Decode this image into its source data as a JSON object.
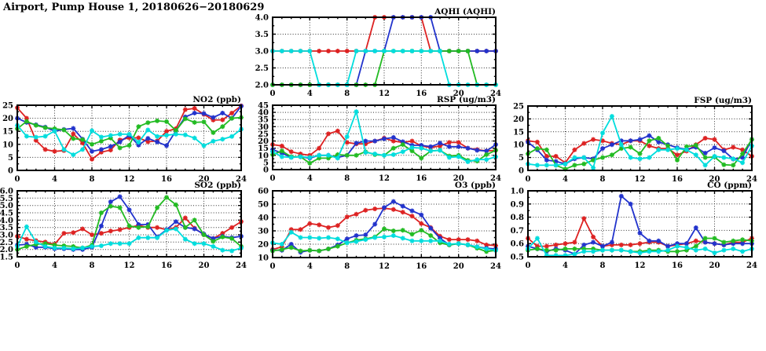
{
  "page_title": "Airport, Pump House 1, 20180626−20180629",
  "colors": {
    "frame": "#000000",
    "grid": "#333333",
    "background": "#ffffff",
    "series_red": "#dd2222",
    "series_blue": "#2233cc",
    "series_green": "#22bb22",
    "series_cyan": "#00dddd"
  },
  "x_axis": {
    "tick_labels": [
      "0",
      "4",
      "8",
      "12",
      "16",
      "20",
      "24"
    ],
    "tick_values": [
      0,
      4,
      8,
      12,
      16,
      20,
      24
    ],
    "minor_step": 1,
    "lim": [
      0,
      24
    ]
  },
  "chart_data": [
    {
      "id": "aqhi",
      "type": "line",
      "title": "AQHI (AQHI)",
      "xlabel": "",
      "ylabel": "",
      "xlim": [
        0,
        24
      ],
      "ylim": [
        2.0,
        4.0
      ],
      "ytick_labels": [
        "2.0",
        "2.5",
        "3.0",
        "3.5",
        "4.0"
      ],
      "series": [
        {
          "name": "red",
          "color": "#dd2222",
          "values": [
            3,
            3,
            3,
            3,
            3,
            3,
            3,
            3,
            3,
            3,
            3,
            4,
            4,
            4,
            4,
            4,
            4,
            3,
            3,
            3,
            3,
            3,
            3,
            3,
            3
          ]
        },
        {
          "name": "blue",
          "color": "#2233cc",
          "values": [
            2,
            2,
            2,
            2,
            2,
            2,
            2,
            2,
            2,
            2,
            3,
            3,
            3,
            4,
            4,
            4,
            4,
            4,
            3,
            3,
            3,
            3,
            3,
            3,
            3
          ]
        },
        {
          "name": "green",
          "color": "#22bb22",
          "values": [
            2,
            2,
            2,
            2,
            2,
            2,
            2,
            2,
            2,
            2,
            2,
            2,
            3,
            3,
            3,
            3,
            3,
            3,
            3,
            3,
            3,
            3,
            2,
            2,
            2
          ]
        },
        {
          "name": "cyan",
          "color": "#00dddd",
          "values": [
            3,
            3,
            3,
            3,
            3,
            2,
            2,
            2,
            2,
            3,
            3,
            3,
            3,
            3,
            3,
            3,
            3,
            3,
            3,
            2,
            2,
            2,
            2,
            2,
            2
          ]
        }
      ]
    },
    {
      "id": "no2",
      "type": "line",
      "title": "NO2 (ppb)",
      "xlabel": "",
      "ylabel": "",
      "xlim": [
        0,
        24
      ],
      "ylim": [
        0,
        25
      ],
      "ytick_labels": [
        "0",
        "5",
        "10",
        "15",
        "20",
        "25"
      ],
      "series": [
        {
          "name": "red",
          "color": "#dd2222",
          "values": [
            24,
            20,
            11.5,
            8,
            7.3,
            7.6,
            14,
            10.5,
            4.3,
            7,
            7.8,
            11.7,
            12.5,
            12.5,
            11,
            11.3,
            15,
            16,
            23.3,
            23.8,
            21.5,
            19.3,
            19.4,
            22,
            24.8
          ]
        },
        {
          "name": "blue",
          "color": "#2233cc",
          "values": [
            20,
            18.4,
            17.5,
            16.6,
            15.1,
            15.7,
            16.1,
            12,
            7.3,
            8,
            9.2,
            10.9,
            13.5,
            9.7,
            12.3,
            10.9,
            9.5,
            15.2,
            20.5,
            22,
            21.8,
            20.3,
            22,
            20,
            24.6
          ]
        },
        {
          "name": "green",
          "color": "#22bb22",
          "values": [
            16,
            18.8,
            17.3,
            16.4,
            16,
            15.5,
            12.2,
            11.8,
            10,
            11.2,
            12.4,
            8.6,
            9.6,
            16.8,
            18.3,
            19,
            18.7,
            15.3,
            19.8,
            18.4,
            18.6,
            14.5,
            16.8,
            20,
            20.3
          ]
        },
        {
          "name": "cyan",
          "color": "#00dddd",
          "values": [
            17.3,
            13.1,
            12.7,
            13.1,
            15.1,
            8,
            6,
            8,
            15.2,
            12.8,
            13.4,
            13.9,
            13.9,
            10.8,
            15.5,
            13,
            13.5,
            13.9,
            13.6,
            12.4,
            9.5,
            11.2,
            12,
            13,
            15.8
          ]
        }
      ]
    },
    {
      "id": "rsp",
      "type": "line",
      "title": "RSP (ug/m3)",
      "xlabel": "",
      "ylabel": "",
      "xlim": [
        0,
        24
      ],
      "ylim": [
        0,
        45
      ],
      "ytick_labels": [
        "0",
        "5",
        "10",
        "15",
        "20",
        "25",
        "30",
        "35",
        "40",
        "45"
      ],
      "series": [
        {
          "name": "red",
          "color": "#dd2222",
          "values": [
            17.5,
            16.5,
            12.5,
            11,
            10,
            15,
            25,
            27,
            19,
            18,
            18,
            20,
            22,
            20,
            19,
            20,
            16.5,
            15.5,
            16.5,
            19,
            19,
            15,
            14,
            13,
            13.5
          ]
        },
        {
          "name": "blue",
          "color": "#2233cc",
          "values": [
            14,
            11.5,
            8.5,
            9,
            8,
            10,
            10,
            8.5,
            10,
            18.5,
            20,
            20,
            21.5,
            22.5,
            19.5,
            17,
            17,
            16,
            18.5,
            16,
            16,
            15,
            13.5,
            13,
            17.5
          ]
        },
        {
          "name": "green",
          "color": "#22bb22",
          "values": [
            10.5,
            13,
            9,
            9,
            4.5,
            8,
            8,
            10.5,
            10,
            10,
            12.5,
            10.5,
            10,
            15,
            17.5,
            13,
            8,
            13,
            13.5,
            9.5,
            10,
            6.5,
            6,
            10.5,
            13.5
          ]
        },
        {
          "name": "cyan",
          "color": "#00dddd",
          "values": [
            12.5,
            9,
            8.5,
            9,
            8.5,
            10,
            10,
            8,
            23,
            40.5,
            12,
            11,
            10,
            10.5,
            12.5,
            15.5,
            15,
            13,
            13.5,
            8.5,
            9,
            5.5,
            7,
            7,
            9
          ]
        }
      ]
    },
    {
      "id": "fsp",
      "type": "line",
      "title": "FSP (ug/m3)",
      "xlabel": "",
      "ylabel": "",
      "xlim": [
        0,
        24
      ],
      "ylim": [
        0,
        25
      ],
      "ytick_labels": [
        "0",
        "5",
        "10",
        "15",
        "20",
        "25"
      ],
      "series": [
        {
          "name": "red",
          "color": "#dd2222",
          "values": [
            11.5,
            11,
            5.5,
            5.5,
            3,
            8,
            10.5,
            12,
            11.5,
            10.5,
            10,
            11.5,
            11.5,
            9.5,
            8.5,
            8.5,
            6,
            7.5,
            10,
            12.5,
            12,
            8,
            9,
            8,
            5.5
          ]
        },
        {
          "name": "blue",
          "color": "#2233cc",
          "values": [
            11,
            8,
            4,
            3.5,
            2.5,
            4.5,
            5,
            4.5,
            8.5,
            10,
            11.5,
            11.5,
            12,
            13.5,
            11,
            10,
            8.8,
            8.2,
            9,
            6.7,
            8.8,
            7.6,
            4.4,
            5,
            12
          ]
        },
        {
          "name": "green",
          "color": "#22bb22",
          "values": [
            6.5,
            8.5,
            8,
            2,
            0.5,
            2,
            2.5,
            4,
            5,
            6,
            8.5,
            9,
            6.5,
            11.5,
            12.5,
            9.5,
            4,
            9.2,
            9.8,
            5,
            5.2,
            2.2,
            2,
            6.5,
            12
          ]
        },
        {
          "name": "cyan",
          "color": "#00dddd",
          "values": [
            2.5,
            2,
            2,
            2,
            2.5,
            5,
            5,
            1,
            14.5,
            21,
            10,
            5,
            4.5,
            5,
            8,
            8,
            8.5,
            8,
            6,
            2,
            5.5,
            5,
            4.5,
            3,
            9.5
          ]
        }
      ]
    },
    {
      "id": "so2",
      "type": "line",
      "title": "SO2 (ppb)",
      "xlabel": "",
      "ylabel": "",
      "xlim": [
        0,
        24
      ],
      "ylim": [
        1.5,
        6.0
      ],
      "ytick_labels": [
        "1.5",
        "2.0",
        "2.5",
        "3.0",
        "3.5",
        "4.0",
        "4.5",
        "5.0",
        "5.5",
        "6.0"
      ],
      "series": [
        {
          "name": "red",
          "color": "#dd2222",
          "values": [
            2.9,
            2.7,
            2.6,
            2.5,
            2.35,
            3.1,
            3.15,
            3.4,
            3.0,
            3.1,
            3.25,
            3.35,
            3.5,
            3.65,
            3.5,
            3.5,
            3.35,
            3.5,
            4.15,
            3.45,
            3.0,
            2.75,
            3.1,
            3.5,
            3.9
          ]
        },
        {
          "name": "blue",
          "color": "#2233cc",
          "values": [
            2.3,
            2.35,
            2.15,
            2.15,
            2.05,
            2.05,
            2.0,
            2.0,
            2.15,
            3.6,
            5.25,
            5.6,
            4.7,
            3.7,
            3.7,
            2.85,
            3.35,
            3.9,
            3.5,
            3.4,
            3.05,
            2.75,
            2.9,
            2.8,
            2.9
          ]
        },
        {
          "name": "green",
          "color": "#22bb22",
          "values": [
            2.0,
            2.2,
            2.35,
            2.4,
            2.3,
            2.25,
            2.2,
            2.1,
            2.3,
            4.5,
            4.95,
            4.85,
            3.6,
            3.5,
            3.55,
            4.85,
            5.55,
            5.05,
            3.5,
            4.0,
            3.0,
            2.55,
            2.85,
            2.75,
            2.2
          ]
        },
        {
          "name": "cyan",
          "color": "#00dddd",
          "values": [
            2.2,
            3.55,
            2.5,
            2.2,
            2.1,
            2.1,
            2.05,
            2.1,
            2.2,
            2.25,
            2.4,
            2.4,
            2.4,
            2.8,
            2.8,
            2.8,
            3.3,
            3.4,
            2.7,
            2.4,
            2.4,
            2.2,
            1.95,
            1.9,
            2.1
          ]
        }
      ]
    },
    {
      "id": "o3",
      "type": "line",
      "title": "O3 (ppb)",
      "xlabel": "",
      "ylabel": "",
      "xlim": [
        0,
        24
      ],
      "ylim": [
        10,
        60
      ],
      "ytick_labels": [
        "10",
        "20",
        "30",
        "40",
        "50",
        "60"
      ],
      "series": [
        {
          "name": "red",
          "color": "#dd2222",
          "values": [
            16,
            18,
            31,
            31,
            35.5,
            34.5,
            32.5,
            34,
            40.5,
            42.5,
            45.5,
            46.5,
            47,
            46,
            44,
            41,
            35.5,
            32.5,
            26,
            23.5,
            23.5,
            23.5,
            22.5,
            19.5,
            19
          ]
        },
        {
          "name": "blue",
          "color": "#2233cc",
          "values": [
            15.5,
            15.5,
            20,
            14,
            15.5,
            15,
            16.5,
            19.5,
            24,
            26.5,
            27,
            35,
            47.5,
            52,
            48.5,
            45,
            42,
            32,
            24.5,
            19.5,
            20.5,
            19.5,
            18,
            17,
            16.5
          ]
        },
        {
          "name": "green",
          "color": "#22bb22",
          "values": [
            15,
            16,
            17.5,
            15,
            15.5,
            15,
            16.5,
            18.5,
            21,
            23,
            24,
            25.5,
            31.5,
            30,
            30.5,
            27.5,
            30.5,
            26.5,
            21,
            19.5,
            20.5,
            19.5,
            17,
            14.5,
            15.5
          ]
        },
        {
          "name": "cyan",
          "color": "#00dddd",
          "values": [
            21,
            20,
            29,
            25,
            25,
            24.5,
            25,
            24,
            21,
            22,
            23.5,
            25,
            25.5,
            26.5,
            24.5,
            22.5,
            22.5,
            22.5,
            22.5,
            20,
            20.5,
            19.5,
            18,
            16.5,
            15.5
          ]
        }
      ]
    },
    {
      "id": "co",
      "type": "line",
      "title": "CO (ppm)",
      "xlabel": "",
      "ylabel": "",
      "xlim": [
        0,
        24
      ],
      "ylim": [
        0.5,
        1.0
      ],
      "ytick_labels": [
        "0.5",
        "0.6",
        "0.7",
        "0.8",
        "0.9",
        "1.0"
      ],
      "series": [
        {
          "name": "red",
          "color": "#dd2222",
          "values": [
            0.64,
            0.58,
            0.58,
            0.59,
            0.6,
            0.61,
            0.79,
            0.65,
            0.58,
            0.59,
            0.59,
            0.59,
            0.6,
            0.61,
            0.61,
            0.58,
            0.59,
            0.6,
            0.62,
            0.61,
            0.6,
            0.59,
            0.61,
            0.61,
            0.64
          ]
        },
        {
          "name": "blue",
          "color": "#2233cc",
          "values": [
            0.58,
            0.56,
            0.54,
            0.56,
            0.55,
            0.52,
            0.59,
            0.61,
            0.58,
            0.61,
            0.96,
            0.9,
            0.68,
            0.62,
            0.62,
            0.58,
            0.6,
            0.6,
            0.72,
            0.61,
            0.6,
            0.59,
            0.6,
            0.6,
            0.6
          ]
        },
        {
          "name": "green",
          "color": "#22bb22",
          "values": [
            0.55,
            0.56,
            0.55,
            0.55,
            0.56,
            0.56,
            0.56,
            0.56,
            0.55,
            0.55,
            0.55,
            0.54,
            0.54,
            0.55,
            0.55,
            0.54,
            0.54,
            0.55,
            0.58,
            0.64,
            0.64,
            0.61,
            0.62,
            0.63,
            0.62
          ]
        },
        {
          "name": "cyan",
          "color": "#00dddd",
          "values": [
            0.56,
            0.64,
            0.51,
            0.51,
            0.51,
            0.52,
            0.54,
            0.54,
            0.55,
            0.55,
            0.55,
            0.54,
            0.53,
            0.54,
            0.54,
            0.55,
            0.58,
            0.57,
            0.55,
            0.56,
            0.53,
            0.55,
            0.56,
            0.54,
            0.56
          ]
        }
      ]
    }
  ]
}
